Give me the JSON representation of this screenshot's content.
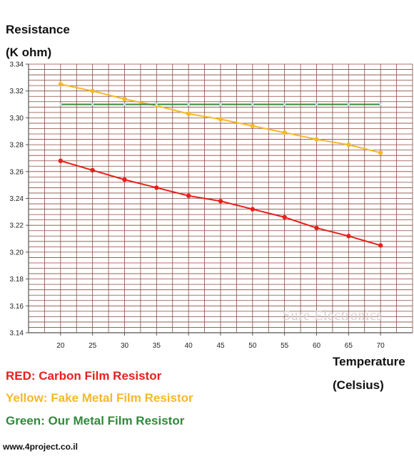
{
  "chart_data": {
    "type": "line",
    "ylabel_line1": "Resistance",
    "ylabel_line2": "(K ohm)",
    "xlabel_line1": "Temperature",
    "xlabel_line2": "(Celsius)",
    "x": [
      20,
      25,
      30,
      35,
      40,
      45,
      50,
      55,
      60,
      65,
      70
    ],
    "xlim": [
      15,
      75
    ],
    "ylim": [
      3.14,
      3.34
    ],
    "yticks": [
      3.14,
      3.16,
      3.18,
      3.2,
      3.22,
      3.24,
      3.26,
      3.28,
      3.3,
      3.32,
      3.34
    ],
    "ytick_labels": [
      "3.14",
      "3.16",
      "3.18",
      "3.20",
      "3.22",
      "3.24",
      "3.26",
      "3.28",
      "3.30",
      "3.32",
      "3.34"
    ],
    "xtick_labels": [
      "20",
      "25",
      "30",
      "35",
      "40",
      "45",
      "50",
      "55",
      "60",
      "65",
      "70"
    ],
    "grid": true,
    "series": [
      {
        "color": "#e8201c",
        "values": [
          3.268,
          3.261,
          3.254,
          3.248,
          3.242,
          3.238,
          3.232,
          3.226,
          3.218,
          3.212,
          3.205
        ]
      },
      {
        "color": "#f5b82a",
        "values": [
          3.325,
          3.32,
          3.314,
          3.309,
          3.303,
          3.299,
          3.294,
          3.289,
          3.284,
          3.28,
          3.274
        ]
      },
      {
        "color": "#2f8a3a",
        "values": [
          3.31,
          3.31,
          3.31,
          3.31,
          3.31,
          3.31,
          3.31,
          3.31,
          3.31,
          3.31,
          3.31
        ]
      }
    ],
    "grid_color": "#8a4a3f"
  },
  "legend": [
    {
      "text": "RED: Carbon Film Resistor",
      "color": "#e8201c"
    },
    {
      "text": "Yellow: Fake Metal Film Resistor",
      "color": "#f5b82a"
    },
    {
      "text": "Green: Our Metal Film Resistor",
      "color": "#2f8a3a"
    }
  ],
  "watermark": "Sure Electronics",
  "website": "www.4project.co.il"
}
